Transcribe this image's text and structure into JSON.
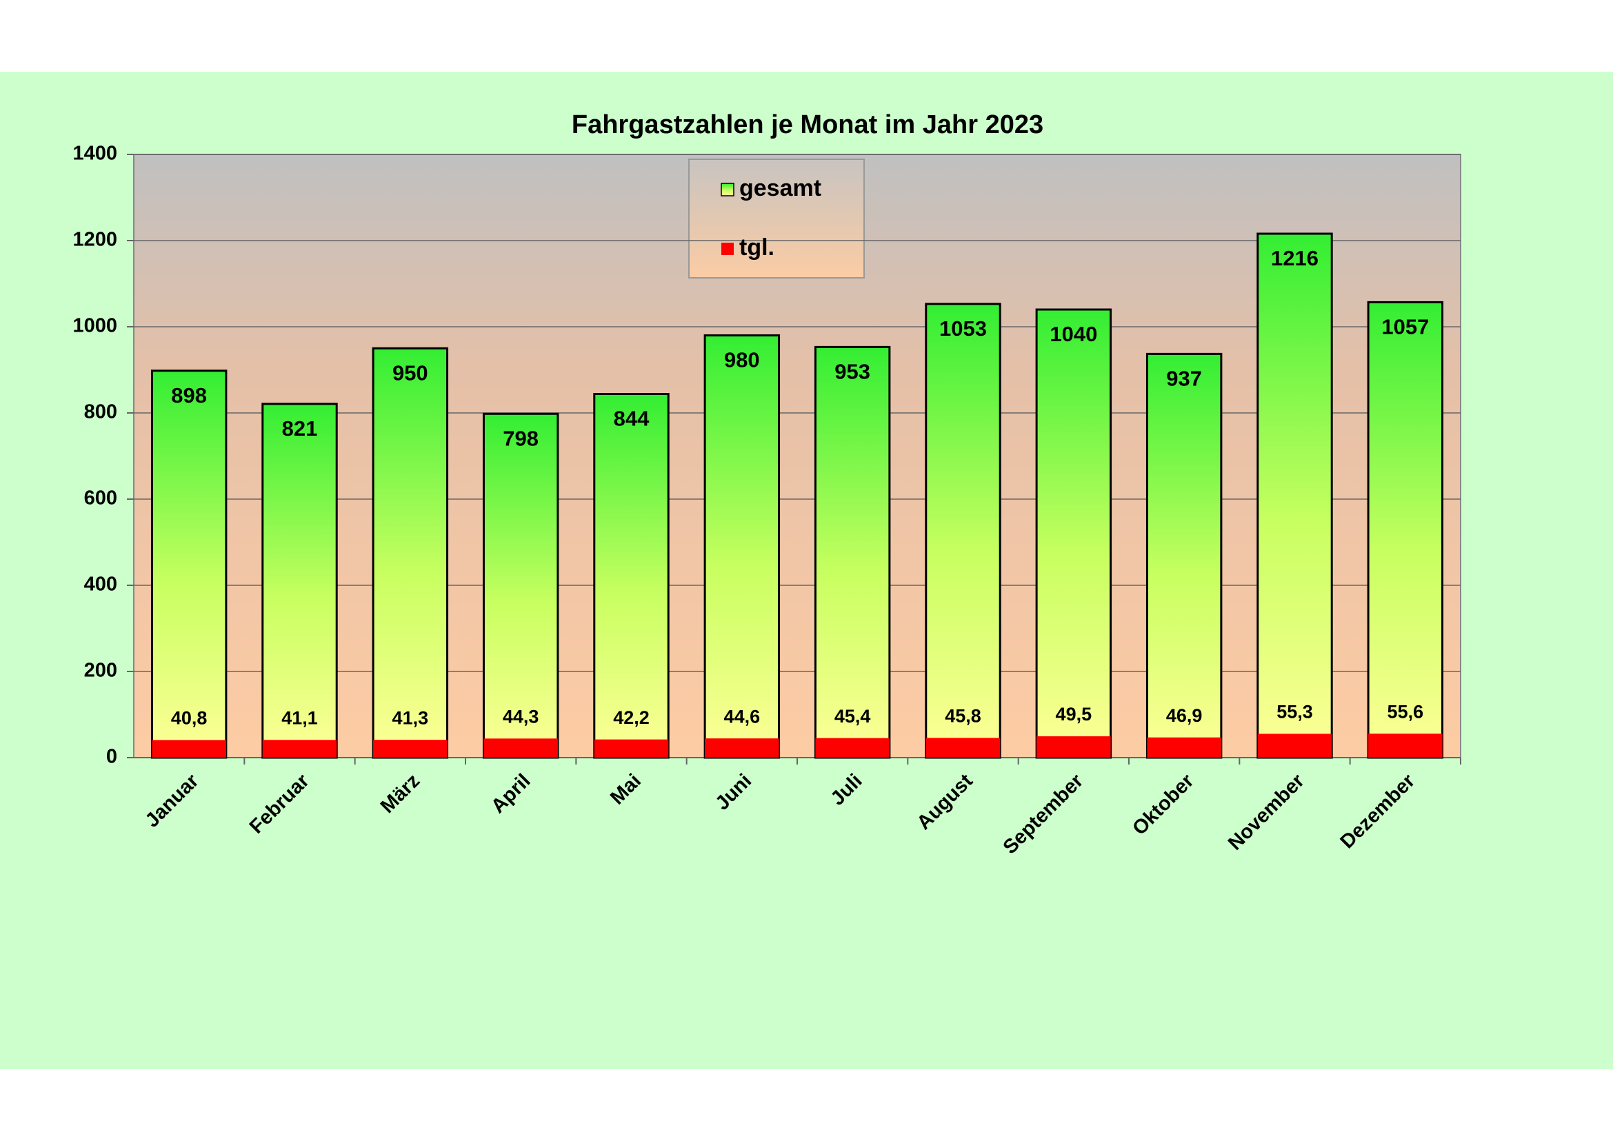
{
  "chart_data": {
    "type": "bar",
    "title": "Fahrgastzahlen je Monat im Jahr 2023",
    "categories": [
      "Januar",
      "Februar",
      "März",
      "April",
      "Mai",
      "Juni",
      "Juli",
      "August",
      "September",
      "Oktober",
      "November",
      "Dezember"
    ],
    "series": [
      {
        "name": "gesamt",
        "color": "#33ee33",
        "values": [
          898,
          821,
          950,
          798,
          844,
          980,
          953,
          1053,
          1040,
          937,
          1216,
          1057
        ]
      },
      {
        "name": "tgl.",
        "color": "#ff0000",
        "values": [
          40.8,
          41.1,
          41.3,
          44.3,
          42.2,
          44.6,
          45.4,
          45.8,
          49.5,
          46.9,
          55.3,
          55.6
        ],
        "value_labels": [
          "40,8",
          "41,1",
          "41,3",
          "44,3",
          "42,2",
          "44,6",
          "45,4",
          "45,8",
          "49,5",
          "46,9",
          "55,3",
          "55,6"
        ]
      }
    ],
    "ylim": [
      0,
      1400
    ],
    "yticks": [
      0,
      200,
      400,
      600,
      800,
      1000,
      1200,
      1400
    ],
    "grid": true,
    "legend": "top"
  }
}
